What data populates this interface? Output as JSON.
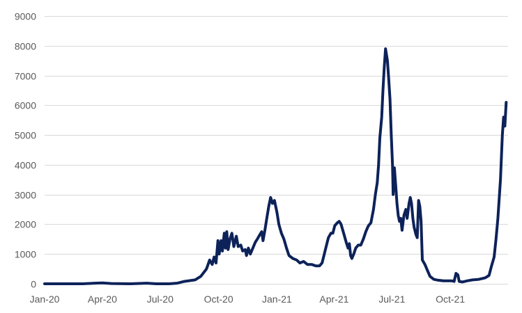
{
  "chart_data": {
    "type": "line",
    "title": "",
    "xlabel": "",
    "ylabel": "",
    "ylim": [
      0,
      9000
    ],
    "xlim": [
      "2020-01-01",
      "2021-12-31"
    ],
    "grid": "horizontal",
    "legend": "none",
    "y_ticks": [
      0,
      1000,
      2000,
      3000,
      4000,
      5000,
      6000,
      7000,
      8000,
      9000
    ],
    "x_ticks": [
      {
        "date": "2020-01-01",
        "label": "Jan-20"
      },
      {
        "date": "2020-04-01",
        "label": "Apr-20"
      },
      {
        "date": "2020-07-01",
        "label": "Jul-20"
      },
      {
        "date": "2020-10-01",
        "label": "Oct-20"
      },
      {
        "date": "2021-01-01",
        "label": "Jan-21"
      },
      {
        "date": "2021-04-01",
        "label": "Apr-21"
      },
      {
        "date": "2021-07-01",
        "label": "Jul-21"
      },
      {
        "date": "2021-10-01",
        "label": "Oct-21"
      }
    ],
    "series": [
      {
        "color": "#0d2259",
        "points": [
          [
            "2020-01-01",
            0
          ],
          [
            "2020-03-01",
            0
          ],
          [
            "2020-03-20",
            20
          ],
          [
            "2020-04-01",
            30
          ],
          [
            "2020-04-15",
            10
          ],
          [
            "2020-05-15",
            0
          ],
          [
            "2020-06-10",
            20
          ],
          [
            "2020-06-25",
            0
          ],
          [
            "2020-07-15",
            0
          ],
          [
            "2020-07-28",
            20
          ],
          [
            "2020-08-08",
            80
          ],
          [
            "2020-08-25",
            130
          ],
          [
            "2020-09-03",
            250
          ],
          [
            "2020-09-12",
            500
          ],
          [
            "2020-09-17",
            800
          ],
          [
            "2020-09-21",
            650
          ],
          [
            "2020-09-24",
            900
          ],
          [
            "2020-09-27",
            700
          ],
          [
            "2020-09-30",
            1450
          ],
          [
            "2020-10-02",
            1000
          ],
          [
            "2020-10-05",
            1450
          ],
          [
            "2020-10-07",
            1100
          ],
          [
            "2020-10-10",
            1700
          ],
          [
            "2020-10-12",
            1200
          ],
          [
            "2020-10-14",
            1750
          ],
          [
            "2020-10-16",
            1150
          ],
          [
            "2020-10-19",
            1500
          ],
          [
            "2020-10-22",
            1700
          ],
          [
            "2020-10-25",
            1250
          ],
          [
            "2020-10-29",
            1600
          ],
          [
            "2020-11-01",
            1250
          ],
          [
            "2020-11-05",
            1300
          ],
          [
            "2020-11-08",
            1100
          ],
          [
            "2020-11-12",
            1150
          ],
          [
            "2020-11-14",
            950
          ],
          [
            "2020-11-17",
            1200
          ],
          [
            "2020-11-20",
            1000
          ],
          [
            "2020-11-24",
            1200
          ],
          [
            "2020-11-28",
            1400
          ],
          [
            "2020-12-01",
            1500
          ],
          [
            "2020-12-05",
            1650
          ],
          [
            "2020-12-08",
            1750
          ],
          [
            "2020-12-10",
            1450
          ],
          [
            "2020-12-13",
            1800
          ],
          [
            "2020-12-16",
            2200
          ],
          [
            "2020-12-19",
            2600
          ],
          [
            "2020-12-22",
            2900
          ],
          [
            "2020-12-25",
            2700
          ],
          [
            "2020-12-28",
            2800
          ],
          [
            "2021-01-01",
            2400
          ],
          [
            "2021-01-04",
            2000
          ],
          [
            "2021-01-08",
            1700
          ],
          [
            "2021-01-12",
            1500
          ],
          [
            "2021-01-16",
            1200
          ],
          [
            "2021-01-20",
            950
          ],
          [
            "2021-01-26",
            850
          ],
          [
            "2021-02-01",
            800
          ],
          [
            "2021-02-06",
            700
          ],
          [
            "2021-02-12",
            750
          ],
          [
            "2021-02-18",
            650
          ],
          [
            "2021-02-25",
            650
          ],
          [
            "2021-03-03",
            600
          ],
          [
            "2021-03-09",
            600
          ],
          [
            "2021-03-13",
            700
          ],
          [
            "2021-03-16",
            950
          ],
          [
            "2021-03-20",
            1300
          ],
          [
            "2021-03-23",
            1550
          ],
          [
            "2021-03-27",
            1700
          ],
          [
            "2021-03-30",
            1700
          ],
          [
            "2021-04-02",
            1950
          ],
          [
            "2021-04-06",
            2050
          ],
          [
            "2021-04-09",
            2100
          ],
          [
            "2021-04-12",
            2000
          ],
          [
            "2021-04-16",
            1700
          ],
          [
            "2021-04-20",
            1400
          ],
          [
            "2021-04-23",
            1200
          ],
          [
            "2021-04-25",
            1350
          ],
          [
            "2021-04-27",
            950
          ],
          [
            "2021-04-29",
            850
          ],
          [
            "2021-05-02",
            1000
          ],
          [
            "2021-05-05",
            1200
          ],
          [
            "2021-05-09",
            1300
          ],
          [
            "2021-05-13",
            1300
          ],
          [
            "2021-05-17",
            1500
          ],
          [
            "2021-05-21",
            1750
          ],
          [
            "2021-05-25",
            1950
          ],
          [
            "2021-05-29",
            2050
          ],
          [
            "2021-06-02",
            2500
          ],
          [
            "2021-06-05",
            3000
          ],
          [
            "2021-06-08",
            3400
          ],
          [
            "2021-06-10",
            4000
          ],
          [
            "2021-06-12",
            4900
          ],
          [
            "2021-06-15",
            5600
          ],
          [
            "2021-06-17",
            6500
          ],
          [
            "2021-06-19",
            7300
          ],
          [
            "2021-06-21",
            7900
          ],
          [
            "2021-06-24",
            7500
          ],
          [
            "2021-06-26",
            6900
          ],
          [
            "2021-06-28",
            6200
          ],
          [
            "2021-06-30",
            5000
          ],
          [
            "2021-07-02",
            4000
          ],
          [
            "2021-07-03",
            3000
          ],
          [
            "2021-07-05",
            3900
          ],
          [
            "2021-07-07",
            3300
          ],
          [
            "2021-07-09",
            2700
          ],
          [
            "2021-07-11",
            2300
          ],
          [
            "2021-07-13",
            2100
          ],
          [
            "2021-07-15",
            2200
          ],
          [
            "2021-07-17",
            1800
          ],
          [
            "2021-07-20",
            2300
          ],
          [
            "2021-07-23",
            2500
          ],
          [
            "2021-07-25",
            2200
          ],
          [
            "2021-07-28",
            2700
          ],
          [
            "2021-07-30",
            2900
          ],
          [
            "2021-08-01",
            2700
          ],
          [
            "2021-08-03",
            2200
          ],
          [
            "2021-08-05",
            1900
          ],
          [
            "2021-08-08",
            1650
          ],
          [
            "2021-08-10",
            1550
          ],
          [
            "2021-08-12",
            2800
          ],
          [
            "2021-08-14",
            2600
          ],
          [
            "2021-08-16",
            2100
          ],
          [
            "2021-08-18",
            800
          ],
          [
            "2021-08-22",
            650
          ],
          [
            "2021-08-26",
            450
          ],
          [
            "2021-08-30",
            250
          ],
          [
            "2021-09-05",
            150
          ],
          [
            "2021-09-12",
            120
          ],
          [
            "2021-09-20",
            100
          ],
          [
            "2021-09-27",
            100
          ],
          [
            "2021-10-03",
            100
          ],
          [
            "2021-10-07",
            80
          ],
          [
            "2021-10-10",
            350
          ],
          [
            "2021-10-13",
            300
          ],
          [
            "2021-10-15",
            80
          ],
          [
            "2021-10-20",
            60
          ],
          [
            "2021-10-28",
            100
          ],
          [
            "2021-11-05",
            130
          ],
          [
            "2021-11-15",
            150
          ],
          [
            "2021-11-25",
            200
          ],
          [
            "2021-12-01",
            280
          ],
          [
            "2021-12-05",
            600
          ],
          [
            "2021-12-09",
            900
          ],
          [
            "2021-12-12",
            1500
          ],
          [
            "2021-12-15",
            2200
          ],
          [
            "2021-12-19",
            3500
          ],
          [
            "2021-12-22",
            5000
          ],
          [
            "2021-12-24",
            5600
          ],
          [
            "2021-12-26",
            5300
          ],
          [
            "2021-12-28",
            6100
          ]
        ]
      }
    ]
  }
}
